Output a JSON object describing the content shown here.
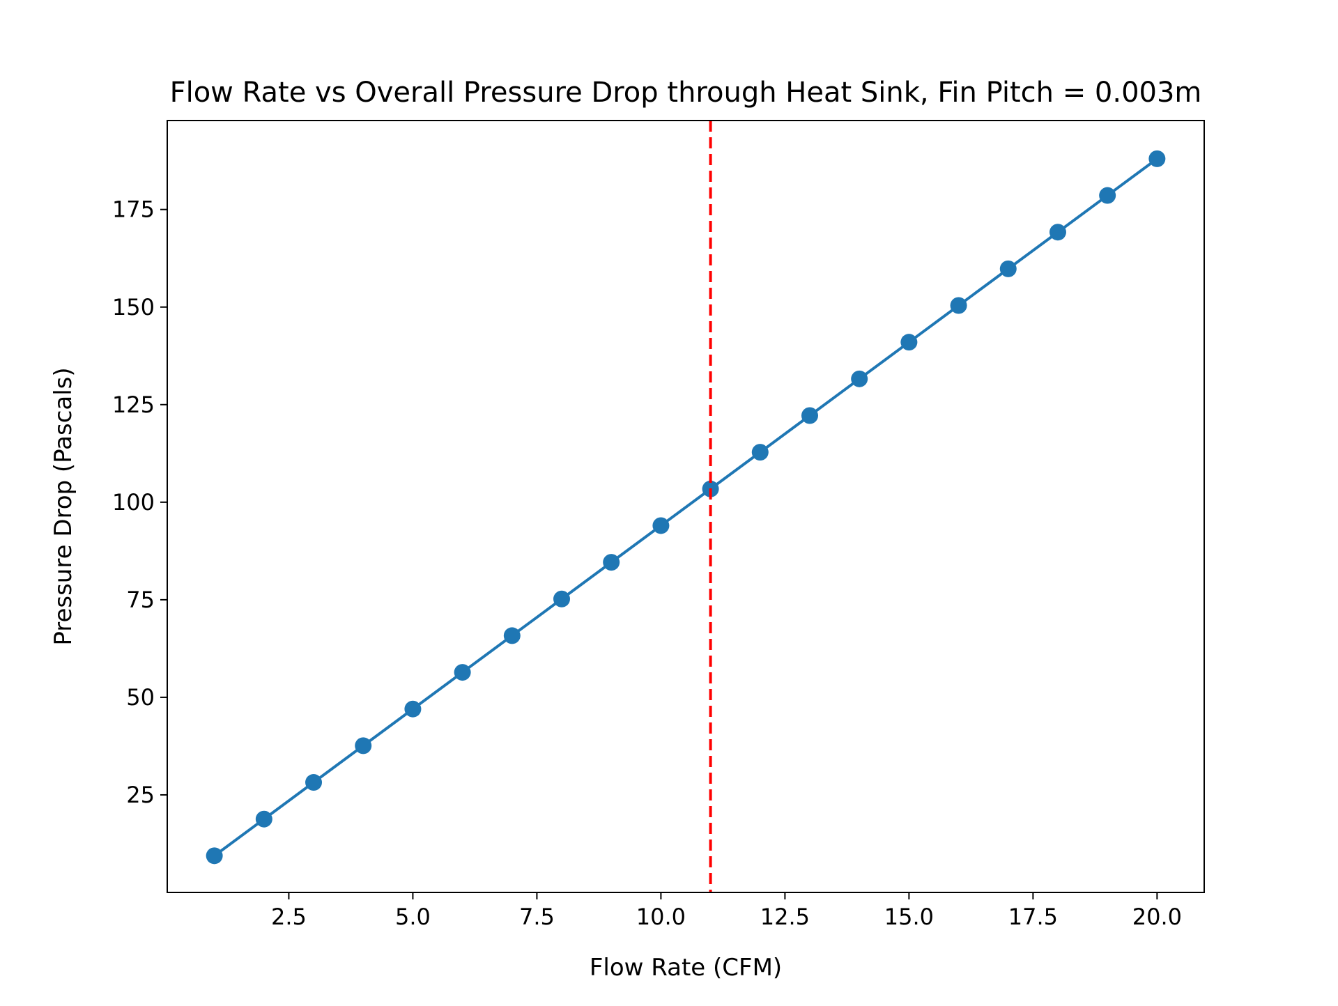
{
  "chart_data": {
    "type": "line",
    "title": "Flow Rate vs Overall Pressure Drop through Heat Sink, Fin Pitch = 0.003m",
    "xlabel": "Flow Rate (CFM)",
    "ylabel": "Pressure Drop (Pascals)",
    "xlim": [
      0.05,
      20.95
    ],
    "ylim": [
      0.0,
      197.8
    ],
    "x_ticks": [
      2.5,
      5.0,
      7.5,
      10.0,
      12.5,
      15.0,
      17.5,
      20.0
    ],
    "x_tick_labels": [
      "2.5",
      "5.0",
      "7.5",
      "10.0",
      "12.5",
      "15.0",
      "17.5",
      "20.0"
    ],
    "y_ticks": [
      25,
      50,
      75,
      100,
      125,
      150,
      175
    ],
    "y_tick_labels": [
      "25",
      "50",
      "75",
      "100",
      "125",
      "150",
      "175"
    ],
    "grid": false,
    "legend": "none",
    "series": [
      {
        "x": [
          1,
          2,
          3,
          4,
          5,
          6,
          7,
          8,
          9,
          10,
          11,
          12,
          13,
          14,
          15,
          16,
          17,
          18,
          19,
          20
        ],
        "values": [
          9.4,
          18.8,
          28.2,
          37.6,
          47.0,
          56.4,
          65.8,
          75.2,
          84.6,
          94.0,
          103.4,
          112.8,
          122.2,
          131.6,
          141.0,
          150.4,
          159.8,
          169.2,
          178.6,
          188.0
        ],
        "color": "#1f77b4",
        "marker": "circle"
      }
    ],
    "reference_lines": [
      {
        "orientation": "vertical",
        "x": 11,
        "style": "dashed",
        "color": "#ff0000"
      }
    ]
  }
}
